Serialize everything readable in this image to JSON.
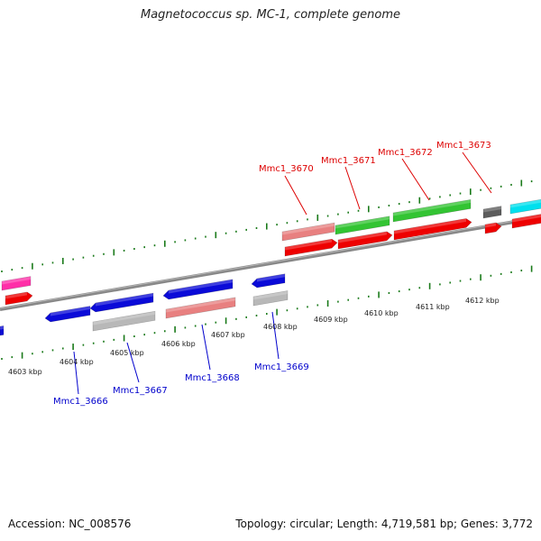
{
  "title": "Magnetococcus sp. MC-1, complete genome",
  "footer": {
    "accession": "Accession: NC_008576",
    "stats": "Topology: circular; Length: 4,719,581 bp; Genes: 3,772"
  },
  "colors": {
    "backbone": "#7a7a7a",
    "tick": "#1a7a1a",
    "label_top": "#dd0000",
    "label_bottom": "#0000cc",
    "red": "#ee0000",
    "blue": "#0a0ad8",
    "gray": "#b8b8b8",
    "salmon": "#e88080",
    "green": "#33c433",
    "cyan": "#00e0ee",
    "magenta": "#ff2fa8",
    "darkgray": "#5c5c5c"
  },
  "kbp_labels": [
    "4603 kbp",
    "4604 kbp",
    "4605 kbp",
    "4606 kbp",
    "4607 kbp",
    "4608 kbp",
    "4609 kbp",
    "4610 kbp",
    "4611 kbp",
    "4612 kbp"
  ],
  "genes_top": [
    "Mmc1_3670",
    "Mmc1_3671",
    "Mmc1_3672",
    "Mmc1_3673"
  ],
  "genes_bottom": [
    "Mmc1_3666",
    "Mmc1_3667",
    "Mmc1_3668",
    "Mmc1_3669"
  ]
}
